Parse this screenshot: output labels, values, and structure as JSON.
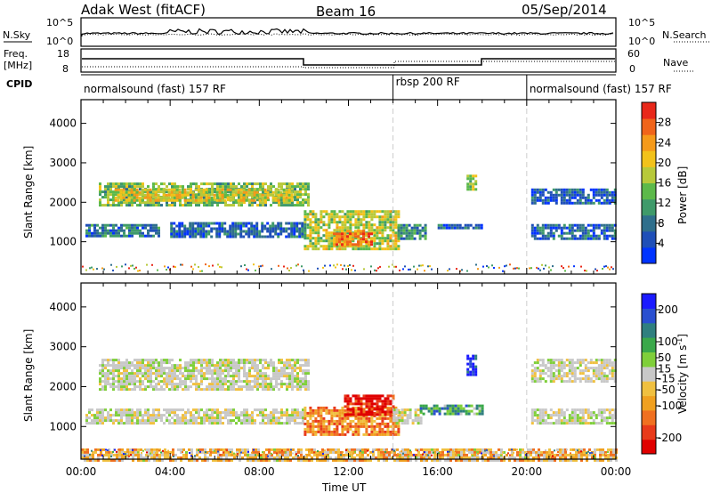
{
  "header": {
    "station": "Adak West (fitACF)",
    "beam": "Beam 16",
    "date": "05/Sep/2014"
  },
  "labels": {
    "nsky": "N.Sky",
    "nsearch": "N.Search",
    "freq": "Freq.",
    "freq_unit": "[MHz]",
    "nave": "Nave",
    "cpid": "CPID"
  },
  "noise_panel": {
    "left_ticks": [
      "10^5",
      "10^0"
    ],
    "right_ticks": [
      "10^5",
      "10^0"
    ]
  },
  "freq_panel": {
    "left_ticks": [
      "18",
      "8"
    ],
    "right_ticks": [
      "60",
      "0"
    ]
  },
  "cpid_segments": [
    {
      "label": "normalsound (fast) 157 RF",
      "start_hour": 0,
      "end_hour": 14
    },
    {
      "label": "rbsp 200 RF",
      "start_hour": 14,
      "end_hour": 20
    },
    {
      "label": "normalsound (fast) 157 RF",
      "start_hour": 20,
      "end_hour": 24
    }
  ],
  "colors": {
    "power_scale": [
      "#0033ff",
      "#1f4fb8",
      "#2f6f8c",
      "#3f9a6a",
      "#5cb94a",
      "#b7c93a",
      "#f2c21a",
      "#f59a1a",
      "#f0641a",
      "#e8281a"
    ],
    "velocity_scale": [
      "#1a1aff",
      "#2a4fd0",
      "#2f7f7f",
      "#3aa84a",
      "#7fcf3a",
      "#c8c8c8",
      "#f0c040",
      "#f0a020",
      "#f07020",
      "#e83a1a",
      "#e00000"
    ],
    "gap_line": "#cccccc"
  },
  "chart_data": [
    {
      "type": "heatmap",
      "panel": "power",
      "ylabel": "Slant Range [km]",
      "xlabel": "Time UT",
      "x_ticks": [
        "00:00",
        "04:00",
        "08:00",
        "12:00",
        "16:00",
        "20:00",
        "00:00"
      ],
      "y_ticks": [
        1000,
        2000,
        3000,
        4000
      ],
      "xlim_hours": [
        0,
        24
      ],
      "ylim_km": [
        180,
        4600
      ],
      "colorbar": {
        "label": "Power [dB]",
        "ticks": [
          4,
          8,
          12,
          16,
          20,
          24,
          28
        ],
        "range": [
          0,
          32
        ]
      },
      "regions": [
        {
          "t0": 0.8,
          "t1": 10.2,
          "r0": 1950,
          "r1": 2500,
          "level": 0.45
        },
        {
          "t0": 1.5,
          "t1": 9.5,
          "r0": 2050,
          "r1": 2350,
          "level": 0.62
        },
        {
          "t0": 0.2,
          "t1": 3.5,
          "r0": 1150,
          "r1": 1450,
          "level": 0.25
        },
        {
          "t0": 4.0,
          "t1": 10.0,
          "r0": 1100,
          "r1": 1500,
          "level": 0.22
        },
        {
          "t0": 10.0,
          "t1": 14.2,
          "r0": 800,
          "r1": 1800,
          "level": 0.55
        },
        {
          "t0": 11.3,
          "t1": 13.0,
          "r0": 900,
          "r1": 1300,
          "level": 0.85
        },
        {
          "t0": 14.2,
          "t1": 15.5,
          "r0": 1100,
          "r1": 1450,
          "level": 0.3
        },
        {
          "t0": 16.0,
          "t1": 18.0,
          "r0": 1350,
          "r1": 1450,
          "level": 0.2
        },
        {
          "t0": 17.3,
          "t1": 17.7,
          "r0": 2350,
          "r1": 2700,
          "level": 0.5
        },
        {
          "t0": 20.2,
          "t1": 24.0,
          "r0": 1100,
          "r1": 1450,
          "level": 0.2
        },
        {
          "t0": 20.2,
          "t1": 24.0,
          "r0": 1950,
          "r1": 2350,
          "level": 0.18
        }
      ]
    },
    {
      "type": "heatmap",
      "panel": "velocity",
      "ylabel": "Slant Range [km]",
      "xlabel": "Time UT",
      "x_ticks": [
        "00:00",
        "04:00",
        "08:00",
        "12:00",
        "16:00",
        "20:00",
        "00:00"
      ],
      "y_ticks": [
        1000,
        2000,
        3000,
        4000
      ],
      "xlim_hours": [
        0,
        24
      ],
      "ylim_km": [
        180,
        4600
      ],
      "colorbar": {
        "label": "Velocity [m s^-1]",
        "ticks": [
          200,
          100,
          50,
          15,
          -15,
          -50,
          -100,
          -200
        ],
        "range": [
          -250,
          250
        ]
      },
      "regions": [
        {
          "t0": 0.8,
          "t1": 10.2,
          "r0": 1950,
          "r1": 2700,
          "level": 0.5
        },
        {
          "t0": 0.2,
          "t1": 10.0,
          "r0": 1100,
          "r1": 1450,
          "level": 0.5
        },
        {
          "t0": 10.0,
          "t1": 14.2,
          "r0": 800,
          "r1": 1500,
          "level": 0.72
        },
        {
          "t0": 11.8,
          "t1": 14.0,
          "r0": 1300,
          "r1": 1800,
          "level": 0.95
        },
        {
          "t0": 14.0,
          "t1": 15.2,
          "r0": 1100,
          "r1": 1450,
          "level": 0.5
        },
        {
          "t0": 15.2,
          "t1": 18.0,
          "r0": 1300,
          "r1": 1550,
          "level": 0.3
        },
        {
          "t0": 17.3,
          "t1": 17.7,
          "r0": 2300,
          "r1": 2800,
          "level": 0.05
        },
        {
          "t0": 20.2,
          "t1": 24.0,
          "r0": 1100,
          "r1": 1450,
          "level": 0.5
        },
        {
          "t0": 20.2,
          "t1": 24.0,
          "r0": 2100,
          "r1": 2700,
          "level": 0.5
        },
        {
          "t0": 0.0,
          "t1": 24.0,
          "r0": 180,
          "r1": 450,
          "level": 0.62
        }
      ]
    }
  ]
}
